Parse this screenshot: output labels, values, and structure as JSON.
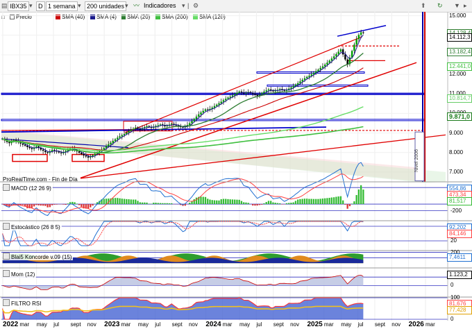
{
  "toolbar": {
    "symbol": "IBX35",
    "period_letter": "D",
    "timeframe": "1 semana",
    "units": "200 unidades",
    "indicators_label": "Indicadores"
  },
  "legend": {
    "price_label": "Precio",
    "items": [
      {
        "label": "SMA (40)",
        "color": "#cc0000"
      },
      {
        "label": "SMA (4)",
        "color": "#1a1a8c"
      },
      {
        "label": "SMA (20)",
        "color": "#2e7d32"
      },
      {
        "label": "SMA (200)",
        "color": "#3fbf3f"
      },
      {
        "label": "SMA (120)",
        "color": "#66dd66"
      }
    ]
  },
  "watermark": "ProRealTime.com - Fin de Día",
  "vertical_label": "Nivel 2006",
  "colors": {
    "up": "#00a000",
    "down": "#000000",
    "trend_red": "#e00000",
    "trend_blue": "#0000cc",
    "sma_green": "#2e7d32",
    "macd_line": "#1f6fd1",
    "signal": "#ff4040",
    "hist_pos": "#33bb33",
    "hist_neg": "#dd3333"
  },
  "chart_data": [
    {
      "type": "candlestick",
      "title": "IBX35",
      "ylim": [
        6500,
        15200
      ],
      "yticks": [
        "15.000",
        "14.000",
        "13.000",
        "12.000",
        "11.000",
        "10.000",
        "9.000",
        "8.000",
        "7.000"
      ],
      "xticks": [
        "2022",
        "mar",
        "may",
        "jul",
        "sept",
        "nov",
        "2023",
        "mar",
        "may",
        "jul",
        "sept",
        "nov",
        "2024",
        "mar",
        "may",
        "jul",
        "sept",
        "nov",
        "2025",
        "mar",
        "may",
        "jul",
        "sept",
        "nov",
        "2026",
        "mar"
      ],
      "price_tags": [
        {
          "label": "14.128,4",
          "value": 14128,
          "color": "#2a7a2a",
          "bg": "#ffffff"
        },
        {
          "label": "14.112,3",
          "value": 14112,
          "color": "#000000",
          "bg": "#ffffff"
        },
        {
          "label": "13.182,4",
          "value": 13182,
          "color": "#2e7d32",
          "bg": "#ffffff"
        },
        {
          "label": "12.441,0",
          "value": 12441,
          "color": "#3fbf3f",
          "bg": "#ffffff"
        },
        {
          "label": "10.814,7",
          "value": 10814,
          "color": "#66cc66",
          "bg": "#ffffff"
        },
        {
          "label": "9.871,0",
          "value": 9871,
          "color": "#1a7a1a",
          "bg": "#ffffff"
        }
      ],
      "weekly_close": [
        8700,
        8620,
        8540,
        8480,
        8560,
        8640,
        8590,
        8520,
        8460,
        8400,
        8350,
        8280,
        8230,
        8180,
        8260,
        8320,
        8240,
        8150,
        8090,
        8020,
        7980,
        8060,
        8140,
        8100,
        8050,
        8000,
        7960,
        8020,
        8080,
        8150,
        8220,
        8190,
        8120,
        8060,
        7990,
        7920,
        7850,
        7800,
        7740,
        7780,
        7860,
        7940,
        8010,
        8080,
        8150,
        8230,
        8330,
        8420,
        8500,
        8590,
        8680,
        8760,
        8830,
        8890,
        8950,
        9020,
        9100,
        9160,
        9220,
        9280,
        9230,
        9180,
        9240,
        9300,
        9350,
        9310,
        9260,
        9300,
        9360,
        9400,
        9440,
        9390,
        9340,
        9380,
        9430,
        9470,
        9420,
        9380,
        9330,
        9300,
        9280,
        9330,
        9410,
        9500,
        9600,
        9720,
        9840,
        9950,
        10050,
        10130,
        10210,
        10180,
        10230,
        10300,
        10380,
        10450,
        10520,
        10600,
        10680,
        10750,
        10810,
        10860,
        10920,
        10990,
        11060,
        11120,
        11080,
        11020,
        11060,
        11100,
        11050,
        11000,
        10950,
        10900,
        10980,
        11050,
        11120,
        11180,
        11230,
        11180,
        11130,
        11170,
        11210,
        11250,
        11200,
        11160,
        11210,
        11270,
        11330,
        11400,
        11480,
        11550,
        11640,
        11720,
        11800,
        11870,
        11930,
        12000,
        12080,
        12160,
        12240,
        12330,
        12410,
        12500,
        12600,
        12700,
        12810,
        12920,
        13040,
        13160,
        13280,
        13020,
        12760,
        12520,
        12860,
        13200,
        13520,
        13800,
        14020,
        14150,
        14112
      ],
      "series": [
        {
          "name": "SMA (4)",
          "values": "computed"
        },
        {
          "name": "SMA (20)",
          "values": "computed"
        },
        {
          "name": "SMA (40)",
          "values": "computed"
        },
        {
          "name": "SMA (120)",
          "values": "computed"
        },
        {
          "name": "SMA (200)",
          "values": "computed"
        }
      ]
    },
    {
      "type": "line",
      "title": "MACD (12 26 9)",
      "ylim": [
        -250,
        650
      ],
      "yticks": [
        "500",
        "0",
        "-200"
      ],
      "tags": [
        {
          "label": "554,86",
          "color": "#1f6fd1"
        },
        {
          "label": "473,34",
          "color": "#ff4040"
        },
        {
          "label": "81,517",
          "color": "#33bb33"
        }
      ]
    },
    {
      "type": "line",
      "title": "Estocástico (26 8 5)",
      "ylim": [
        0,
        100
      ],
      "yticks": [
        "80",
        "20"
      ],
      "tags": [
        {
          "label": "92,202",
          "color": "#1f6fd1"
        },
        {
          "label": "84,146",
          "color": "#ff4040"
        }
      ]
    },
    {
      "type": "area",
      "title": "Blai5 Koncorde v.09 (15)",
      "ylim": [
        -50,
        220
      ],
      "yticks": [
        "200",
        "100"
      ],
      "tags": [
        {
          "label": "7,4611",
          "color": "#1f6fd1"
        }
      ]
    },
    {
      "type": "area",
      "title": "Mom (12)",
      "ylim": [
        -1200,
        2000
      ],
      "yticks": [
        "1.000",
        "0"
      ],
      "tags": [
        {
          "label": "1.123,2",
          "color": "#000000"
        }
      ]
    },
    {
      "type": "area",
      "title": "FILTRO RSI",
      "ylim": [
        0,
        100
      ],
      "yticks": [
        "100",
        "0"
      ],
      "tags": [
        {
          "label": "81,676",
          "color": "#ff4040"
        },
        {
          "label": "77,428",
          "color": "#e0a000"
        }
      ]
    }
  ]
}
